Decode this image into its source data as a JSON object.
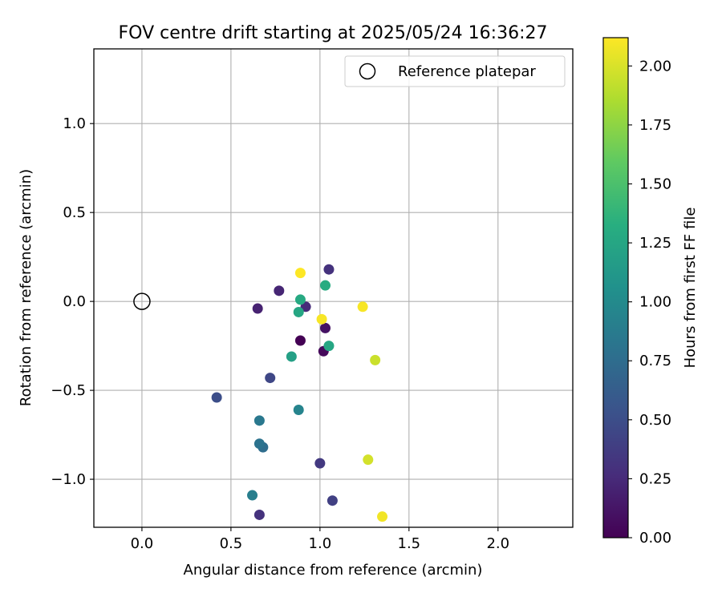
{
  "chart_data": {
    "type": "scatter",
    "title": "FOV centre drift starting at 2025/05/24 16:36:27",
    "xlabel": "Angular distance from reference (arcmin)",
    "ylabel": "Rotation from reference (arcmin)",
    "xlim": [
      -0.27,
      2.42
    ],
    "ylim": [
      -1.27,
      1.42
    ],
    "xticks": [
      0.0,
      0.5,
      1.0,
      1.5,
      2.0
    ],
    "xtick_labels": [
      "0.0",
      "0.5",
      "1.0",
      "1.5",
      "2.0"
    ],
    "yticks": [
      -1.0,
      -0.5,
      0.0,
      0.5,
      1.0
    ],
    "ytick_labels": [
      "−1.0",
      "−0.5",
      "0.0",
      "0.5",
      "1.0"
    ],
    "grid": true,
    "legend": {
      "position": "top-right",
      "entries": [
        "Reference platepar"
      ]
    },
    "reference_point": {
      "x": 0.0,
      "y": 0.0,
      "label": "Reference platepar"
    },
    "colorbar": {
      "label": "Hours from first FF file",
      "colormap": "viridis",
      "min": 0.0,
      "max": 2.12,
      "ticks": [
        0.0,
        0.25,
        0.5,
        0.75,
        1.0,
        1.25,
        1.5,
        1.75,
        2.0
      ],
      "tick_labels": [
        "0.00",
        "0.25",
        "0.50",
        "0.75",
        "1.00",
        "1.25",
        "1.50",
        "1.75",
        "2.00"
      ]
    },
    "points": [
      {
        "x": 0.89,
        "y": -0.22,
        "t": 0.0
      },
      {
        "x": 1.02,
        "y": -0.28,
        "t": 0.05
      },
      {
        "x": 1.03,
        "y": -0.15,
        "t": 0.1
      },
      {
        "x": 0.65,
        "y": -0.04,
        "t": 0.2
      },
      {
        "x": 0.77,
        "y": 0.06,
        "t": 0.22
      },
      {
        "x": 0.92,
        "y": -0.03,
        "t": 0.25
      },
      {
        "x": 1.05,
        "y": 0.18,
        "t": 0.3
      },
      {
        "x": 0.66,
        "y": -1.2,
        "t": 0.3
      },
      {
        "x": 1.0,
        "y": -0.91,
        "t": 0.35
      },
      {
        "x": 1.07,
        "y": -1.12,
        "t": 0.4
      },
      {
        "x": 0.72,
        "y": -0.43,
        "t": 0.45
      },
      {
        "x": 0.42,
        "y": -0.54,
        "t": 0.5
      },
      {
        "x": 0.68,
        "y": -0.82,
        "t": 0.75
      },
      {
        "x": 0.66,
        "y": -0.8,
        "t": 0.8
      },
      {
        "x": 0.66,
        "y": -0.67,
        "t": 0.85
      },
      {
        "x": 0.62,
        "y": -1.09,
        "t": 0.9
      },
      {
        "x": 0.88,
        "y": -0.61,
        "t": 0.95
      },
      {
        "x": 0.84,
        "y": -0.31,
        "t": 1.2
      },
      {
        "x": 1.05,
        "y": -0.25,
        "t": 1.25
      },
      {
        "x": 0.88,
        "y": -0.06,
        "t": 1.25
      },
      {
        "x": 0.89,
        "y": 0.01,
        "t": 1.28
      },
      {
        "x": 1.03,
        "y": 0.09,
        "t": 1.3
      },
      {
        "x": 1.01,
        "y": -0.1,
        "t": 2.1
      },
      {
        "x": 0.89,
        "y": 0.16,
        "t": 2.12
      },
      {
        "x": 1.24,
        "y": -0.03,
        "t": 2.1
      },
      {
        "x": 1.31,
        "y": -0.33,
        "t": 1.95
      },
      {
        "x": 1.27,
        "y": -0.89,
        "t": 1.98
      },
      {
        "x": 1.35,
        "y": -1.21,
        "t": 2.08
      }
    ]
  }
}
